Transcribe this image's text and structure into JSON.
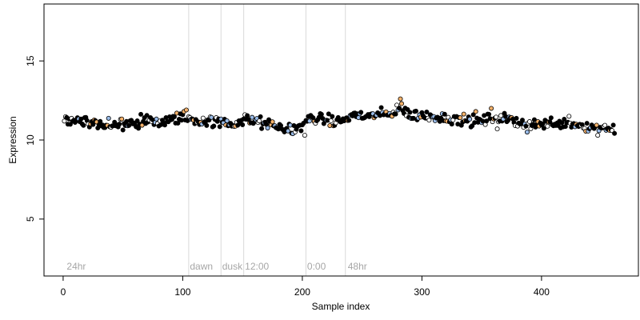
{
  "chart_data": {
    "type": "scatter",
    "xlabel": "Sample index",
    "ylabel": "Expression",
    "xlim": [
      -16,
      481
    ],
    "ylim": [
      1.4,
      18.6
    ],
    "x_ticks": [
      0,
      100,
      200,
      300,
      400
    ],
    "x_tick_labels": [
      "0",
      "100",
      "200",
      "300",
      "400"
    ],
    "y_ticks": [
      5,
      10,
      15
    ],
    "y_tick_labels": [
      "5",
      "10",
      "15"
    ],
    "grid": false,
    "colors": {
      "black": "#000000",
      "blue": "#99bbe8",
      "orange": "#f5b26b",
      "white": "#ffffff",
      "divider": "#d9d9d9",
      "label": "#a6a6a6"
    },
    "dividers": [
      105,
      132,
      151,
      203,
      236
    ],
    "region_labels": [
      {
        "text": "24hr",
        "x": 3
      },
      {
        "text": "dawn",
        "x": 106
      },
      {
        "text": "dusk",
        "x": 133
      },
      {
        "text": "12:00",
        "x": 152
      },
      {
        "text": "0:00",
        "x": 204
      },
      {
        "text": "48hr",
        "x": 238
      }
    ],
    "label_y": 2.0,
    "anchors": [
      [
        1,
        11.3
      ],
      [
        10,
        11.3
      ],
      [
        20,
        11.2
      ],
      [
        30,
        11.0
      ],
      [
        40,
        10.9
      ],
      [
        50,
        11.0
      ],
      [
        60,
        11.1
      ],
      [
        70,
        11.2
      ],
      [
        80,
        11.1
      ],
      [
        90,
        11.2
      ],
      [
        100,
        11.5
      ],
      [
        105,
        11.3
      ],
      [
        110,
        11.2
      ],
      [
        120,
        11.2
      ],
      [
        132,
        11.1
      ],
      [
        140,
        11.0
      ],
      [
        150,
        11.2
      ],
      [
        160,
        11.2
      ],
      [
        170,
        11.0
      ],
      [
        180,
        10.8
      ],
      [
        190,
        10.7
      ],
      [
        198,
        10.8
      ],
      [
        205,
        11.3
      ],
      [
        215,
        11.4
      ],
      [
        225,
        11.1
      ],
      [
        235,
        11.3
      ],
      [
        245,
        11.6
      ],
      [
        255,
        11.5
      ],
      [
        265,
        11.6
      ],
      [
        272,
        11.6
      ],
      [
        280,
        12.0
      ],
      [
        285,
        11.8
      ],
      [
        290,
        11.6
      ],
      [
        300,
        11.5
      ],
      [
        310,
        11.5
      ],
      [
        320,
        11.4
      ],
      [
        330,
        11.3
      ],
      [
        340,
        11.2
      ],
      [
        350,
        11.2
      ],
      [
        360,
        11.4
      ],
      [
        370,
        11.3
      ],
      [
        380,
        11.2
      ],
      [
        390,
        11.0
      ],
      [
        400,
        11.0
      ],
      [
        410,
        11.1
      ],
      [
        420,
        11.1
      ],
      [
        430,
        11.0
      ],
      [
        440,
        10.8
      ],
      [
        450,
        10.8
      ],
      [
        461,
        10.7
      ]
    ],
    "point_count": 461,
    "point_jitter": 0.22,
    "spikes": [
      {
        "x": 282,
        "y": 12.6,
        "fill": "orange"
      },
      {
        "x": 283,
        "y": 12.3,
        "fill": "orange"
      },
      {
        "x": 95,
        "y": 11.7,
        "fill": "orange"
      },
      {
        "x": 101,
        "y": 11.8,
        "fill": "orange"
      },
      {
        "x": 103,
        "y": 11.9,
        "fill": "orange"
      },
      {
        "x": 152,
        "y": 11.6,
        "fill": "white"
      },
      {
        "x": 192,
        "y": 10.4,
        "fill": "blue"
      },
      {
        "x": 202,
        "y": 10.3,
        "fill": "white"
      },
      {
        "x": 275,
        "y": 11.5,
        "fill": "orange"
      },
      {
        "x": 345,
        "y": 11.8,
        "fill": "orange"
      },
      {
        "x": 358,
        "y": 12.0,
        "fill": "orange"
      },
      {
        "x": 363,
        "y": 10.7,
        "fill": "white"
      },
      {
        "x": 385,
        "y": 10.8,
        "fill": "white"
      },
      {
        "x": 388,
        "y": 10.5,
        "fill": "blue"
      },
      {
        "x": 423,
        "y": 11.5,
        "fill": "white"
      },
      {
        "x": 447,
        "y": 10.3,
        "fill": "white"
      }
    ]
  }
}
